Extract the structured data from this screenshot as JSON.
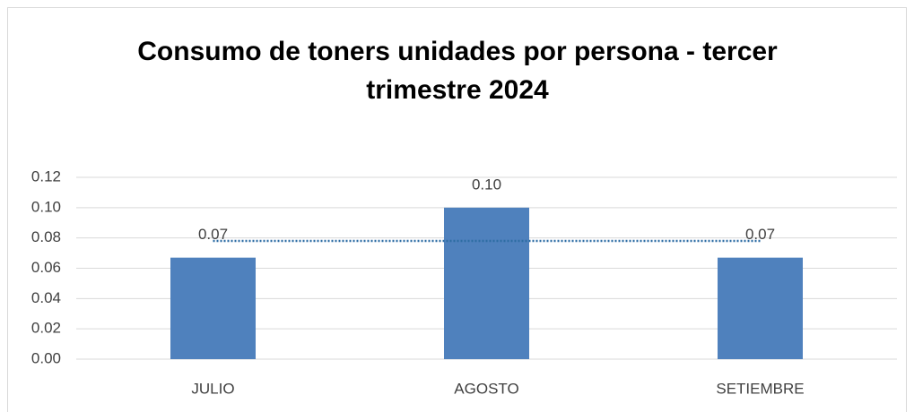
{
  "chart_data": {
    "type": "bar",
    "title": "Consumo de toners unidades por persona - tercer trimestre 2024",
    "categories": [
      "JULIO",
      "AGOSTO",
      "SETIEMBRE"
    ],
    "series": [
      {
        "type": "bar",
        "color": "#4f81bd",
        "values": [
          0.067,
          0.1,
          0.067
        ],
        "value_labels": [
          "0.07",
          "0.10",
          "0.07"
        ]
      },
      {
        "type": "line",
        "color": "#2e6da4",
        "dash": "dotted",
        "values": [
          0.078,
          0.078,
          0.078
        ]
      }
    ],
    "ylim": [
      0,
      0.12
    ],
    "yticks": [
      {
        "value": 0,
        "label": "0.00"
      },
      {
        "value": 0.02,
        "label": "0.02"
      },
      {
        "value": 0.04,
        "label": "0.04"
      },
      {
        "value": 0.06,
        "label": "0.06"
      },
      {
        "value": 0.08,
        "label": "0.08"
      },
      {
        "value": 0.1,
        "label": "0.10"
      },
      {
        "value": 0.12,
        "label": "0.12"
      }
    ],
    "grid": true
  }
}
